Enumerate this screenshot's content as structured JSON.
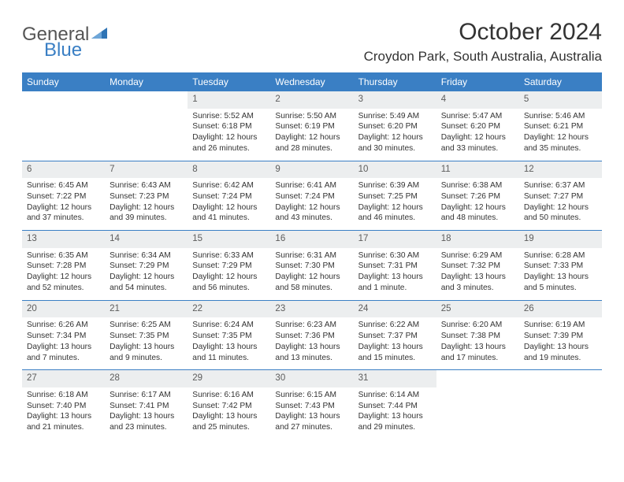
{
  "brand": {
    "word1": "General",
    "word2": "Blue",
    "triangle_color": "#2f74b5"
  },
  "title": "October 2024",
  "location": "Croydon Park, South Australia, Australia",
  "colors": {
    "header_bg": "#3a7fc4",
    "header_text": "#ffffff",
    "daynum_bg": "#eceeef",
    "rule": "#3a7fc4",
    "body_text": "#333333"
  },
  "type": "calendar-table",
  "weekdays": [
    "Sunday",
    "Monday",
    "Tuesday",
    "Wednesday",
    "Thursday",
    "Friday",
    "Saturday"
  ],
  "weeks": [
    [
      null,
      null,
      {
        "n": "1",
        "sr": "Sunrise: 5:52 AM",
        "ss": "Sunset: 6:18 PM",
        "dl": "Daylight: 12 hours and 26 minutes."
      },
      {
        "n": "2",
        "sr": "Sunrise: 5:50 AM",
        "ss": "Sunset: 6:19 PM",
        "dl": "Daylight: 12 hours and 28 minutes."
      },
      {
        "n": "3",
        "sr": "Sunrise: 5:49 AM",
        "ss": "Sunset: 6:20 PM",
        "dl": "Daylight: 12 hours and 30 minutes."
      },
      {
        "n": "4",
        "sr": "Sunrise: 5:47 AM",
        "ss": "Sunset: 6:20 PM",
        "dl": "Daylight: 12 hours and 33 minutes."
      },
      {
        "n": "5",
        "sr": "Sunrise: 5:46 AM",
        "ss": "Sunset: 6:21 PM",
        "dl": "Daylight: 12 hours and 35 minutes."
      }
    ],
    [
      {
        "n": "6",
        "sr": "Sunrise: 6:45 AM",
        "ss": "Sunset: 7:22 PM",
        "dl": "Daylight: 12 hours and 37 minutes."
      },
      {
        "n": "7",
        "sr": "Sunrise: 6:43 AM",
        "ss": "Sunset: 7:23 PM",
        "dl": "Daylight: 12 hours and 39 minutes."
      },
      {
        "n": "8",
        "sr": "Sunrise: 6:42 AM",
        "ss": "Sunset: 7:24 PM",
        "dl": "Daylight: 12 hours and 41 minutes."
      },
      {
        "n": "9",
        "sr": "Sunrise: 6:41 AM",
        "ss": "Sunset: 7:24 PM",
        "dl": "Daylight: 12 hours and 43 minutes."
      },
      {
        "n": "10",
        "sr": "Sunrise: 6:39 AM",
        "ss": "Sunset: 7:25 PM",
        "dl": "Daylight: 12 hours and 46 minutes."
      },
      {
        "n": "11",
        "sr": "Sunrise: 6:38 AM",
        "ss": "Sunset: 7:26 PM",
        "dl": "Daylight: 12 hours and 48 minutes."
      },
      {
        "n": "12",
        "sr": "Sunrise: 6:37 AM",
        "ss": "Sunset: 7:27 PM",
        "dl": "Daylight: 12 hours and 50 minutes."
      }
    ],
    [
      {
        "n": "13",
        "sr": "Sunrise: 6:35 AM",
        "ss": "Sunset: 7:28 PM",
        "dl": "Daylight: 12 hours and 52 minutes."
      },
      {
        "n": "14",
        "sr": "Sunrise: 6:34 AM",
        "ss": "Sunset: 7:29 PM",
        "dl": "Daylight: 12 hours and 54 minutes."
      },
      {
        "n": "15",
        "sr": "Sunrise: 6:33 AM",
        "ss": "Sunset: 7:29 PM",
        "dl": "Daylight: 12 hours and 56 minutes."
      },
      {
        "n": "16",
        "sr": "Sunrise: 6:31 AM",
        "ss": "Sunset: 7:30 PM",
        "dl": "Daylight: 12 hours and 58 minutes."
      },
      {
        "n": "17",
        "sr": "Sunrise: 6:30 AM",
        "ss": "Sunset: 7:31 PM",
        "dl": "Daylight: 13 hours and 1 minute."
      },
      {
        "n": "18",
        "sr": "Sunrise: 6:29 AM",
        "ss": "Sunset: 7:32 PM",
        "dl": "Daylight: 13 hours and 3 minutes."
      },
      {
        "n": "19",
        "sr": "Sunrise: 6:28 AM",
        "ss": "Sunset: 7:33 PM",
        "dl": "Daylight: 13 hours and 5 minutes."
      }
    ],
    [
      {
        "n": "20",
        "sr": "Sunrise: 6:26 AM",
        "ss": "Sunset: 7:34 PM",
        "dl": "Daylight: 13 hours and 7 minutes."
      },
      {
        "n": "21",
        "sr": "Sunrise: 6:25 AM",
        "ss": "Sunset: 7:35 PM",
        "dl": "Daylight: 13 hours and 9 minutes."
      },
      {
        "n": "22",
        "sr": "Sunrise: 6:24 AM",
        "ss": "Sunset: 7:35 PM",
        "dl": "Daylight: 13 hours and 11 minutes."
      },
      {
        "n": "23",
        "sr": "Sunrise: 6:23 AM",
        "ss": "Sunset: 7:36 PM",
        "dl": "Daylight: 13 hours and 13 minutes."
      },
      {
        "n": "24",
        "sr": "Sunrise: 6:22 AM",
        "ss": "Sunset: 7:37 PM",
        "dl": "Daylight: 13 hours and 15 minutes."
      },
      {
        "n": "25",
        "sr": "Sunrise: 6:20 AM",
        "ss": "Sunset: 7:38 PM",
        "dl": "Daylight: 13 hours and 17 minutes."
      },
      {
        "n": "26",
        "sr": "Sunrise: 6:19 AM",
        "ss": "Sunset: 7:39 PM",
        "dl": "Daylight: 13 hours and 19 minutes."
      }
    ],
    [
      {
        "n": "27",
        "sr": "Sunrise: 6:18 AM",
        "ss": "Sunset: 7:40 PM",
        "dl": "Daylight: 13 hours and 21 minutes."
      },
      {
        "n": "28",
        "sr": "Sunrise: 6:17 AM",
        "ss": "Sunset: 7:41 PM",
        "dl": "Daylight: 13 hours and 23 minutes."
      },
      {
        "n": "29",
        "sr": "Sunrise: 6:16 AM",
        "ss": "Sunset: 7:42 PM",
        "dl": "Daylight: 13 hours and 25 minutes."
      },
      {
        "n": "30",
        "sr": "Sunrise: 6:15 AM",
        "ss": "Sunset: 7:43 PM",
        "dl": "Daylight: 13 hours and 27 minutes."
      },
      {
        "n": "31",
        "sr": "Sunrise: 6:14 AM",
        "ss": "Sunset: 7:44 PM",
        "dl": "Daylight: 13 hours and 29 minutes."
      },
      null,
      null
    ]
  ]
}
